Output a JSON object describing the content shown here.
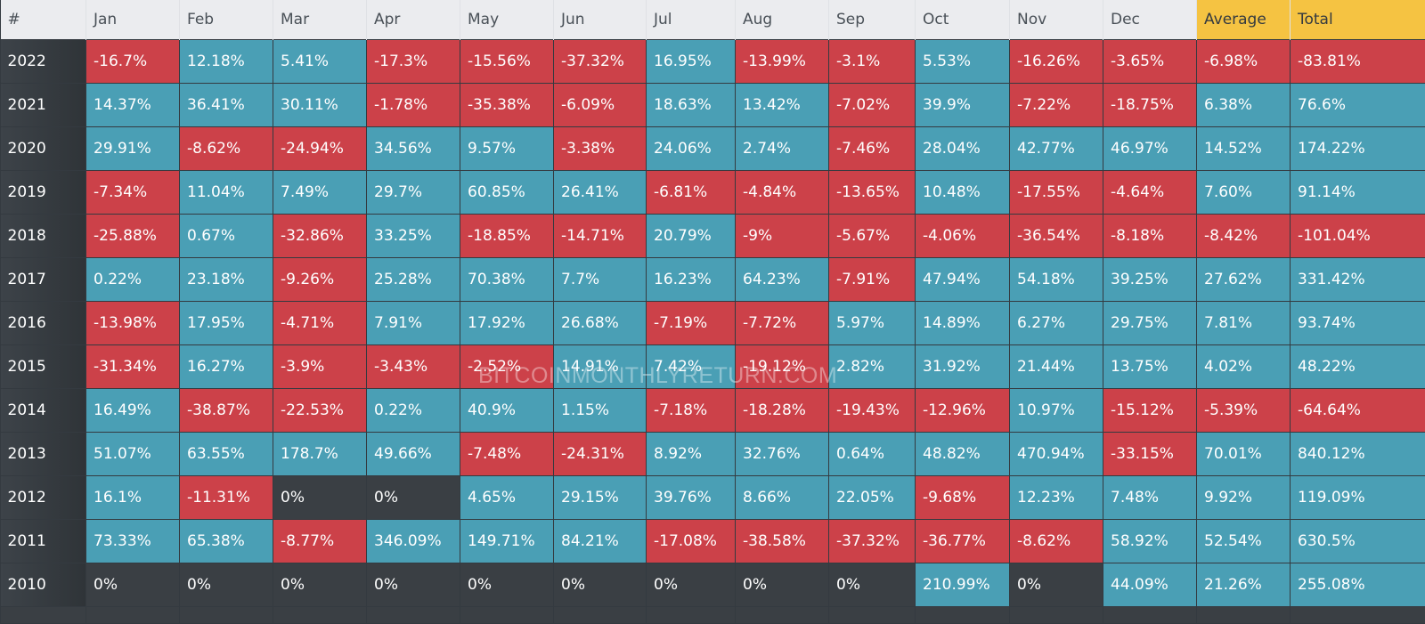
{
  "colors": {
    "positive": "#4a9fb5",
    "negative": "#cc4149",
    "zero": "#3a3f44",
    "header": "#ebecef",
    "summary_header": "#f5c342"
  },
  "headers": [
    "#",
    "Jan",
    "Feb",
    "Mar",
    "Apr",
    "May",
    "Jun",
    "Jul",
    "Aug",
    "Sep",
    "Oct",
    "Nov",
    "Dec",
    "Average",
    "Total"
  ],
  "watermark": "BITCOINMONTHLYRETURN.COM",
  "rows": [
    {
      "year": "2022",
      "values": [
        "-16.7%",
        "12.18%",
        "5.41%",
        "-17.3%",
        "-15.56%",
        "-37.32%",
        "16.95%",
        "-13.99%",
        "-3.1%",
        "5.53%",
        "-16.26%",
        "-3.65%",
        "-6.98%",
        "-83.81%"
      ]
    },
    {
      "year": "2021",
      "values": [
        "14.37%",
        "36.41%",
        "30.11%",
        "-1.78%",
        "-35.38%",
        "-6.09%",
        "18.63%",
        "13.42%",
        "-7.02%",
        "39.9%",
        "-7.22%",
        "-18.75%",
        "6.38%",
        "76.6%"
      ]
    },
    {
      "year": "2020",
      "values": [
        "29.91%",
        "-8.62%",
        "-24.94%",
        "34.56%",
        "9.57%",
        "-3.38%",
        "24.06%",
        "2.74%",
        "-7.46%",
        "28.04%",
        "42.77%",
        "46.97%",
        "14.52%",
        "174.22%"
      ]
    },
    {
      "year": "2019",
      "values": [
        "-7.34%",
        "11.04%",
        "7.49%",
        "29.7%",
        "60.85%",
        "26.41%",
        "-6.81%",
        "-4.84%",
        "-13.65%",
        "10.48%",
        "-17.55%",
        "-4.64%",
        "7.60%",
        "91.14%"
      ]
    },
    {
      "year": "2018",
      "values": [
        "-25.88%",
        "0.67%",
        "-32.86%",
        "33.25%",
        "-18.85%",
        "-14.71%",
        "20.79%",
        "-9%",
        "-5.67%",
        "-4.06%",
        "-36.54%",
        "-8.18%",
        "-8.42%",
        "-101.04%"
      ]
    },
    {
      "year": "2017",
      "values": [
        "0.22%",
        "23.18%",
        "-9.26%",
        "25.28%",
        "70.38%",
        "7.7%",
        "16.23%",
        "64.23%",
        "-7.91%",
        "47.94%",
        "54.18%",
        "39.25%",
        "27.62%",
        "331.42%"
      ]
    },
    {
      "year": "2016",
      "values": [
        "-13.98%",
        "17.95%",
        "-4.71%",
        "7.91%",
        "17.92%",
        "26.68%",
        "-7.19%",
        "-7.72%",
        "5.97%",
        "14.89%",
        "6.27%",
        "29.75%",
        "7.81%",
        "93.74%"
      ]
    },
    {
      "year": "2015",
      "values": [
        "-31.34%",
        "16.27%",
        "-3.9%",
        "-3.43%",
        "-2.52%",
        "14.91%",
        "7.42%",
        "-19.12%",
        "2.82%",
        "31.92%",
        "21.44%",
        "13.75%",
        "4.02%",
        "48.22%"
      ]
    },
    {
      "year": "2014",
      "values": [
        "16.49%",
        "-38.87%",
        "-22.53%",
        "0.22%",
        "40.9%",
        "1.15%",
        "-7.18%",
        "-18.28%",
        "-19.43%",
        "-12.96%",
        "10.97%",
        "-15.12%",
        "-5.39%",
        "-64.64%"
      ]
    },
    {
      "year": "2013",
      "values": [
        "51.07%",
        "63.55%",
        "178.7%",
        "49.66%",
        "-7.48%",
        "-24.31%",
        "8.92%",
        "32.76%",
        "0.64%",
        "48.82%",
        "470.94%",
        "-33.15%",
        "70.01%",
        "840.12%"
      ]
    },
    {
      "year": "2012",
      "values": [
        "16.1%",
        "-11.31%",
        "0%",
        "0%",
        "4.65%",
        "29.15%",
        "39.76%",
        "8.66%",
        "22.05%",
        "-9.68%",
        "12.23%",
        "7.48%",
        "9.92%",
        "119.09%"
      ]
    },
    {
      "year": "2011",
      "values": [
        "73.33%",
        "65.38%",
        "-8.77%",
        "346.09%",
        "149.71%",
        "84.21%",
        "-17.08%",
        "-38.58%",
        "-37.32%",
        "-36.77%",
        "-8.62%",
        "58.92%",
        "52.54%",
        "630.5%"
      ]
    },
    {
      "year": "2010",
      "values": [
        "0%",
        "0%",
        "0%",
        "0%",
        "0%",
        "0%",
        "0%",
        "0%",
        "0%",
        "210.99%",
        "0%",
        "44.09%",
        "21.26%",
        "255.08%"
      ]
    }
  ]
}
